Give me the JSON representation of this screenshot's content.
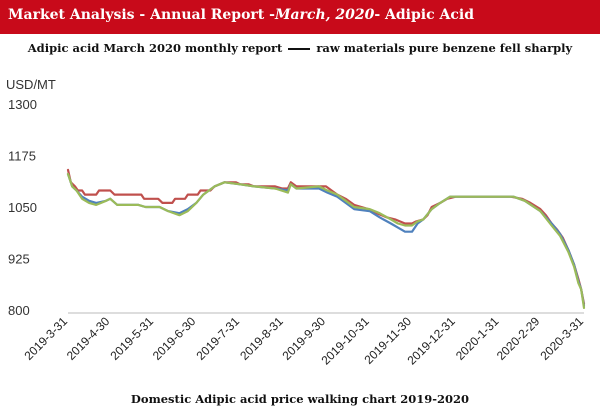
{
  "header": {
    "prefix": "Market Analysis - Annual Report -",
    "date": "March, 2020",
    "suffix": "- Adipic Acid",
    "bg_color": "#c80a1a"
  },
  "chart_data": {
    "type": "line",
    "title": "Adipic acid March 2020 monthly report",
    "title_right": "raw materials pure benzene fell sharply",
    "ylabel": "USD/MT",
    "caption": "Domestic Adipic acid price walking chart 2019-2020",
    "ylim": [
      800,
      1300
    ],
    "yticks": [
      800,
      925,
      1050,
      1175,
      1300
    ],
    "xlim": [
      "2019-03-31",
      "2020-03-31"
    ],
    "xticks": [
      "2019-3-31",
      "2019-4-30",
      "2019-5-31",
      "2019-6-30",
      "2019-7-31",
      "2019-8-31",
      "2019-9-30",
      "2019-10-31",
      "2019-11-30",
      "2019-12-31",
      "2020-1-31",
      "2020-2-29",
      "2020-3-31"
    ],
    "grid": false,
    "legend": "none",
    "series": [
      {
        "color": "#c0504d",
        "points": [
          [
            "2019-03-31",
            1140
          ],
          [
            "2019-04-02",
            1110
          ],
          [
            "2019-04-05",
            1100
          ],
          [
            "2019-04-07",
            1090
          ],
          [
            "2019-04-10",
            1090
          ],
          [
            "2019-04-12",
            1080
          ],
          [
            "2019-04-20",
            1080
          ],
          [
            "2019-04-22",
            1090
          ],
          [
            "2019-04-30",
            1090
          ],
          [
            "2019-05-03",
            1080
          ],
          [
            "2019-05-22",
            1080
          ],
          [
            "2019-05-24",
            1070
          ],
          [
            "2019-06-03",
            1070
          ],
          [
            "2019-06-06",
            1060
          ],
          [
            "2019-06-13",
            1060
          ],
          [
            "2019-06-15",
            1070
          ],
          [
            "2019-06-22",
            1070
          ],
          [
            "2019-06-24",
            1080
          ],
          [
            "2019-07-01",
            1080
          ],
          [
            "2019-07-03",
            1090
          ],
          [
            "2019-07-10",
            1090
          ],
          [
            "2019-07-13",
            1100
          ],
          [
            "2019-07-20",
            1110
          ],
          [
            "2019-07-28",
            1110
          ],
          [
            "2019-07-31",
            1105
          ],
          [
            "2019-08-06",
            1105
          ],
          [
            "2019-08-10",
            1100
          ],
          [
            "2019-08-25",
            1100
          ],
          [
            "2019-08-30",
            1095
          ],
          [
            "2019-09-03",
            1095
          ],
          [
            "2019-09-05",
            1110
          ],
          [
            "2019-09-09",
            1100
          ],
          [
            "2019-09-30",
            1100
          ],
          [
            "2019-10-04",
            1090
          ],
          [
            "2019-10-08",
            1080
          ],
          [
            "2019-10-14",
            1070
          ],
          [
            "2019-10-20",
            1055
          ],
          [
            "2019-10-30",
            1045
          ],
          [
            "2019-11-05",
            1035
          ],
          [
            "2019-11-12",
            1025
          ],
          [
            "2019-11-18",
            1020
          ],
          [
            "2019-11-25",
            1010
          ],
          [
            "2019-11-30",
            1010
          ],
          [
            "2019-12-03",
            1015
          ],
          [
            "2019-12-08",
            1020
          ],
          [
            "2019-12-11",
            1030
          ],
          [
            "2019-12-14",
            1050
          ],
          [
            "2019-12-20",
            1060
          ],
          [
            "2019-12-25",
            1070
          ],
          [
            "2019-12-31",
            1075
          ],
          [
            "2020-01-10",
            1075
          ],
          [
            "2020-01-20",
            1075
          ],
          [
            "2020-02-08",
            1075
          ],
          [
            "2020-02-16",
            1070
          ],
          [
            "2020-02-22",
            1060
          ],
          [
            "2020-02-29",
            1045
          ],
          [
            "2020-03-04",
            1030
          ],
          [
            "2020-03-08",
            1010
          ],
          [
            "2020-03-12",
            995
          ],
          [
            "2020-03-16",
            975
          ],
          [
            "2020-03-20",
            945
          ],
          [
            "2020-03-24",
            910
          ],
          [
            "2020-03-27",
            875
          ],
          [
            "2020-03-29",
            850
          ],
          [
            "2020-03-31",
            815
          ]
        ]
      },
      {
        "color": "#4f81bd",
        "points": [
          [
            "2019-03-31",
            1130
          ],
          [
            "2019-04-03",
            1100
          ],
          [
            "2019-04-06",
            1090
          ],
          [
            "2019-04-10",
            1075
          ],
          [
            "2019-04-15",
            1065
          ],
          [
            "2019-04-20",
            1060
          ],
          [
            "2019-04-27",
            1065
          ],
          [
            "2019-04-30",
            1070
          ],
          [
            "2019-05-05",
            1055
          ],
          [
            "2019-05-20",
            1055
          ],
          [
            "2019-05-25",
            1050
          ],
          [
            "2019-06-04",
            1050
          ],
          [
            "2019-06-10",
            1040
          ],
          [
            "2019-06-18",
            1035
          ],
          [
            "2019-06-24",
            1045
          ],
          [
            "2019-06-30",
            1060
          ],
          [
            "2019-07-05",
            1080
          ],
          [
            "2019-07-13",
            1100
          ],
          [
            "2019-07-20",
            1110
          ],
          [
            "2019-07-31",
            1105
          ],
          [
            "2019-08-10",
            1100
          ],
          [
            "2019-08-25",
            1095
          ],
          [
            "2019-09-03",
            1090
          ],
          [
            "2019-09-05",
            1105
          ],
          [
            "2019-09-09",
            1095
          ],
          [
            "2019-09-25",
            1095
          ],
          [
            "2019-10-01",
            1085
          ],
          [
            "2019-10-08",
            1075
          ],
          [
            "2019-10-14",
            1060
          ],
          [
            "2019-10-20",
            1045
          ],
          [
            "2019-10-31",
            1040
          ],
          [
            "2019-11-07",
            1025
          ],
          [
            "2019-11-15",
            1010
          ],
          [
            "2019-11-20",
            1000
          ],
          [
            "2019-11-25",
            990
          ],
          [
            "2019-11-30",
            990
          ],
          [
            "2019-12-04",
            1010
          ],
          [
            "2019-12-08",
            1020
          ],
          [
            "2019-12-14",
            1045
          ],
          [
            "2019-12-20",
            1060
          ],
          [
            "2019-12-27",
            1075
          ],
          [
            "2020-01-10",
            1075
          ],
          [
            "2020-02-10",
            1075
          ],
          [
            "2020-02-18",
            1065
          ],
          [
            "2020-02-29",
            1040
          ],
          [
            "2020-03-08",
            1010
          ],
          [
            "2020-03-14",
            985
          ],
          [
            "2020-03-20",
            945
          ],
          [
            "2020-03-24",
            910
          ],
          [
            "2020-03-27",
            870
          ],
          [
            "2020-03-29",
            850
          ],
          [
            "2020-03-31",
            810
          ]
        ]
      },
      {
        "color": "#9bbb59",
        "points": [
          [
            "2019-03-31",
            1130
          ],
          [
            "2019-04-03",
            1100
          ],
          [
            "2019-04-06",
            1090
          ],
          [
            "2019-04-10",
            1070
          ],
          [
            "2019-04-15",
            1060
          ],
          [
            "2019-04-20",
            1055
          ],
          [
            "2019-04-27",
            1065
          ],
          [
            "2019-04-30",
            1070
          ],
          [
            "2019-05-05",
            1055
          ],
          [
            "2019-05-20",
            1055
          ],
          [
            "2019-05-25",
            1050
          ],
          [
            "2019-06-04",
            1050
          ],
          [
            "2019-06-10",
            1040
          ],
          [
            "2019-06-18",
            1030
          ],
          [
            "2019-06-24",
            1040
          ],
          [
            "2019-06-30",
            1060
          ],
          [
            "2019-07-05",
            1080
          ],
          [
            "2019-07-13",
            1100
          ],
          [
            "2019-07-20",
            1110
          ],
          [
            "2019-07-31",
            1105
          ],
          [
            "2019-08-10",
            1100
          ],
          [
            "2019-08-25",
            1095
          ],
          [
            "2019-09-03",
            1085
          ],
          [
            "2019-09-05",
            1105
          ],
          [
            "2019-09-09",
            1095
          ],
          [
            "2019-09-25",
            1100
          ],
          [
            "2019-10-01",
            1090
          ],
          [
            "2019-10-08",
            1080
          ],
          [
            "2019-10-14",
            1065
          ],
          [
            "2019-10-20",
            1050
          ],
          [
            "2019-10-31",
            1045
          ],
          [
            "2019-11-07",
            1035
          ],
          [
            "2019-11-15",
            1020
          ],
          [
            "2019-11-20",
            1010
          ],
          [
            "2019-11-25",
            1005
          ],
          [
            "2019-11-30",
            1005
          ],
          [
            "2019-12-04",
            1015
          ],
          [
            "2019-12-08",
            1020
          ],
          [
            "2019-12-14",
            1045
          ],
          [
            "2019-12-20",
            1060
          ],
          [
            "2019-12-27",
            1075
          ],
          [
            "2020-01-10",
            1075
          ],
          [
            "2020-02-10",
            1075
          ],
          [
            "2020-02-18",
            1065
          ],
          [
            "2020-02-29",
            1040
          ],
          [
            "2020-03-08",
            1005
          ],
          [
            "2020-03-14",
            980
          ],
          [
            "2020-03-20",
            940
          ],
          [
            "2020-03-24",
            905
          ],
          [
            "2020-03-27",
            865
          ],
          [
            "2020-03-29",
            850
          ],
          [
            "2020-03-31",
            805
          ]
        ]
      }
    ]
  }
}
